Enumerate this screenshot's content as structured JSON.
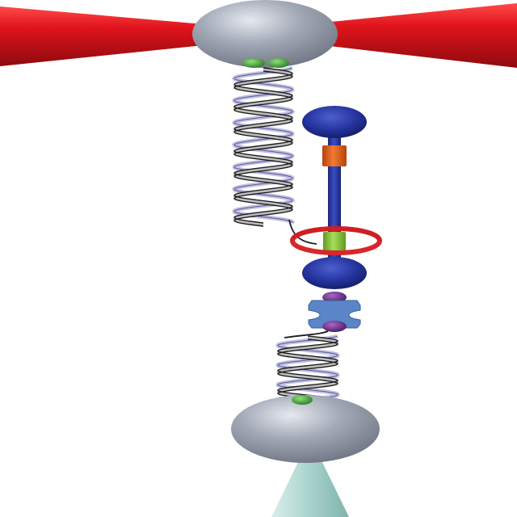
{
  "diagram": {
    "colors": {
      "background": "#ffffff",
      "trap_beam": "#e0141c",
      "bead": "#9ea5b2",
      "dna_strand_dark": "#1c1c1c",
      "dna_strand_light": "#8e8ec6",
      "protein_blue": "#23329a",
      "orange_segment": "#e8641e",
      "green_segment": "#8dc63f",
      "red_ring": "#cf1f24",
      "purple_linker": "#6e2c8c",
      "light_blue_junction": "#5a86c8",
      "green_handle": "#43a33c",
      "pedestal": "#a8d2cc"
    },
    "parts": [
      {
        "name": "optical-trap-beam",
        "icon": "double-cone-shape"
      },
      {
        "name": "trapped-bead-top",
        "icon": "ellipsoid-shape"
      },
      {
        "name": "dna-helix-upper",
        "icon": "double-helix-shape"
      },
      {
        "name": "protein-stalk",
        "icon": "rod-with-caps-shape"
      },
      {
        "name": "ring-clamp",
        "icon": "torus-shape"
      },
      {
        "name": "dna-helix-lower",
        "icon": "double-helix-shape"
      },
      {
        "name": "surface-bead-bottom",
        "icon": "ellipsoid-shape"
      },
      {
        "name": "pedestal",
        "icon": "cone-shape"
      }
    ]
  }
}
